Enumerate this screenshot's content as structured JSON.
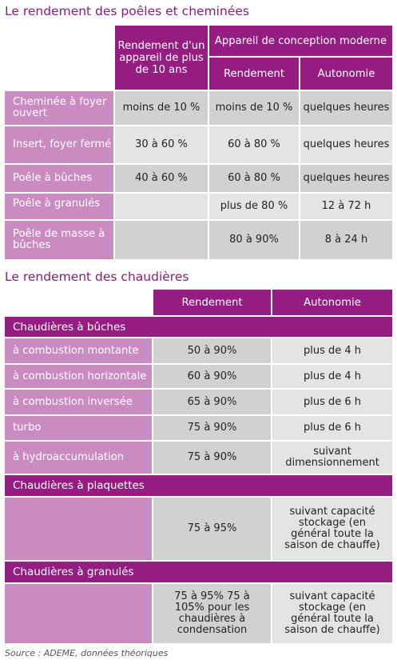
{
  "title1": "Le rendement des poêles et cheminées",
  "t1": {
    "col_old": "Rendement d'un appareil de plus de 10 ans",
    "col_modern": "Appareil de conception moderne",
    "col_rendement": "Rendement",
    "col_autonomie": "Autonomie",
    "rows": [
      {
        "label": "Cheminée à foyer ouvert",
        "old": "moins de 10 %",
        "rendement": "moins de 10 %",
        "autonomie": "quelques heures"
      },
      {
        "label": "Insert, foyer fermé",
        "old": "30 à 60 %",
        "rendement": "60 à 80 %",
        "autonomie": "quelques heures"
      },
      {
        "label": "Poêle à bûches",
        "old": "40 à 60 %",
        "rendement": "60 à 80 %",
        "autonomie": "quelques heures"
      },
      {
        "label": "Poêle à granulés",
        "old": "",
        "rendement": "plus de 80 %",
        "autonomie": "12 à 72 h"
      },
      {
        "label": "Poêle de masse à bûches",
        "old": "",
        "rendement": "80 à 90%",
        "autonomie": "8 à 24 h"
      }
    ]
  },
  "title2": "Le rendement des chaudières",
  "t2": {
    "col_rendement": "Rendement",
    "col_autonomie": "Autonomie",
    "sec1": "Chaudières à bûches",
    "rows": [
      {
        "label": "à combustion montante",
        "rendement": "50 à 90%",
        "autonomie": "plus de 4 h"
      },
      {
        "label": "à combustion horizontale",
        "rendement": "60 à 90%",
        "autonomie": "plus de 4 h"
      },
      {
        "label": "à combustion inversée",
        "rendement": "65 à 90%",
        "autonomie": "plus de 6 h"
      },
      {
        "label": "turbo",
        "rendement": "75 à 90%",
        "autonomie": "plus de 6 h"
      },
      {
        "label": "à hydroaccumulation",
        "rendement": "75 à 90%",
        "autonomie": "suivant dimensionnement"
      }
    ],
    "sec2": "Chaudières à plaquettes",
    "plaq": {
      "rendement": "75 à 95%",
      "autonomie": "suivant capacité stockage (en général toute la saison de chauffe)"
    },
    "sec3": "Chaudières à granulés",
    "gran": {
      "rendement": "75 à 95% 75 à 105% pour les chaudières à condensation",
      "autonomie": "suivant capacité stockage (en général toute la saison de chauffe)"
    }
  },
  "source": "Source : ADEME, données théoriques"
}
